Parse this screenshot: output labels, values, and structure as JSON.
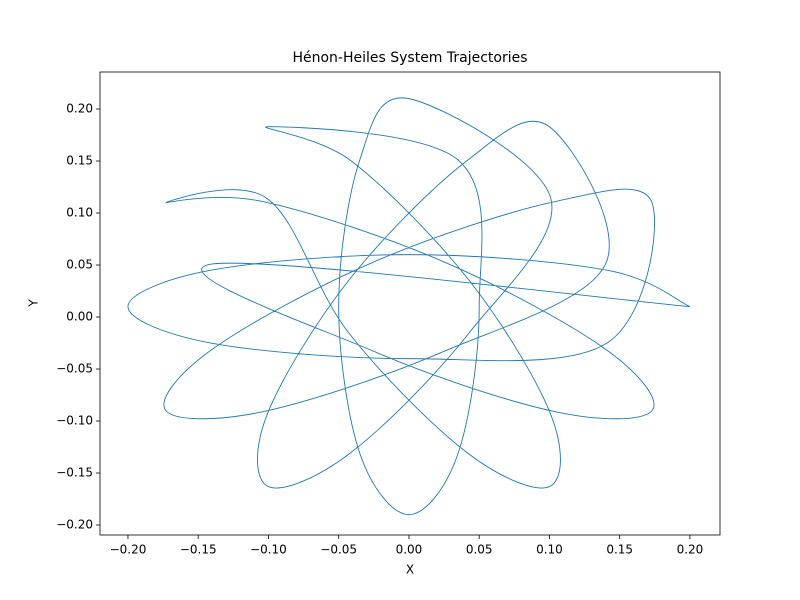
{
  "chart_data": {
    "type": "line",
    "title": "Hénon-Heiles System Trajectories",
    "x_label": "X",
    "y_label": "Y",
    "color": "#1f77b4",
    "xlim": [
      -0.2199,
      0.2214
    ],
    "ylim": [
      -0.2096,
      0.2356
    ],
    "xticks": [
      {
        "value": -0.2,
        "label": "−0.20"
      },
      {
        "value": -0.15,
        "label": "−0.15"
      },
      {
        "value": -0.1,
        "label": "−0.10"
      },
      {
        "value": -0.05,
        "label": "−0.05"
      },
      {
        "value": 0,
        "label": "0.00"
      },
      {
        "value": 0.05,
        "label": "0.05"
      },
      {
        "value": 0.1,
        "label": "0.10"
      },
      {
        "value": 0.15,
        "label": "0.15"
      },
      {
        "value": 0.2,
        "label": "0.20"
      }
    ],
    "yticks": [
      {
        "value": -0.2,
        "label": "−0.20"
      },
      {
        "value": -0.15,
        "label": "−0.15"
      },
      {
        "value": -0.1,
        "label": "−0.10"
      },
      {
        "value": -0.05,
        "label": "−0.05"
      },
      {
        "value": 0,
        "label": "0.00"
      },
      {
        "value": 0.05,
        "label": "0.05"
      },
      {
        "value": 0.1,
        "label": "0.10"
      },
      {
        "value": 0.15,
        "label": "0.15"
      },
      {
        "value": 0.2,
        "label": "0.20"
      }
    ],
    "x": [
      0.2,
      0.141,
      0,
      -0.141,
      -0.2,
      -0.141,
      0,
      0.141,
      0.173,
      0.104,
      -0.025,
      -0.14,
      -0.173,
      -0.104,
      0.025,
      0.14,
      0.1,
      0.041,
      -0.043,
      -0.101,
      -0.1,
      -0.041,
      0.043,
      0.101,
      0,
      -0.035,
      -0.05,
      -0.035,
      0,
      0.035,
      0.05,
      0.035,
      -0.1,
      -0.041,
      0.043,
      0.101,
      0.1,
      0.041,
      -0.043,
      -0.101,
      -0.173,
      -0.104,
      0.025,
      0.14,
      0.173,
      0.104,
      -0.025,
      -0.14,
      0.2
    ],
    "y": [
      0.01,
      0.045,
      0.06,
      0.045,
      0.01,
      -0.025,
      -0.04,
      -0.025,
      0.11,
      0.111,
      0.053,
      -0.031,
      -0.09,
      -0.091,
      -0.033,
      0.051,
      0.183,
      0.15,
      0.035,
      -0.094,
      -0.163,
      -0.13,
      -0.015,
      0.114,
      0.21,
      0.151,
      0.01,
      -0.131,
      -0.19,
      -0.131,
      0.01,
      0.151,
      0.183,
      0.15,
      0.035,
      -0.094,
      -0.163,
      -0.13,
      -0.015,
      0.114,
      0.11,
      0.111,
      0.053,
      -0.031,
      -0.09,
      -0.091,
      -0.033,
      0.051,
      0.01
    ]
  }
}
